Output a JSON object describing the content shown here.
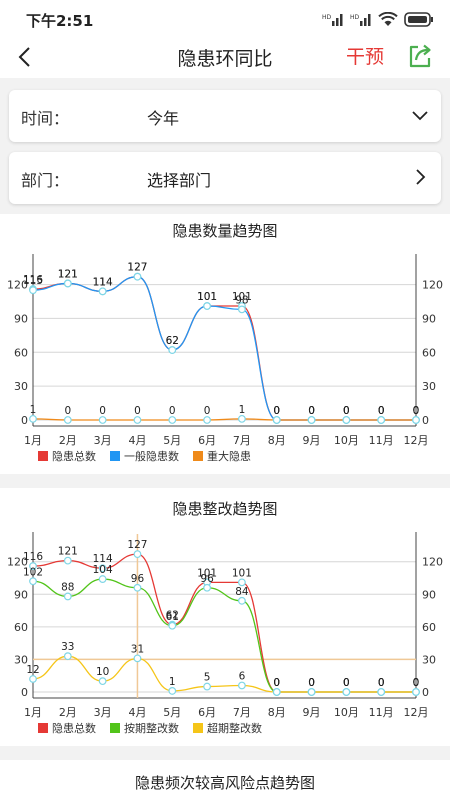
{
  "status_bar": {
    "time": "下午2:51"
  },
  "header": {
    "title": "隐患环同比",
    "action_label": "干预"
  },
  "filters": {
    "time": {
      "label": "时间：",
      "value": "今年"
    },
    "department": {
      "label": "部门：",
      "value": "选择部门"
    }
  },
  "charts": {
    "quantity": {
      "title": "隐患数量趋势图"
    },
    "rectify": {
      "title": "隐患整改趋势图"
    },
    "frequency": {
      "title": "隐患频次较高风险点趋势图"
    }
  },
  "chart_data": [
    {
      "type": "line",
      "title": "隐患数量趋势图",
      "categories": [
        "1月",
        "2月",
        "3月",
        "4月",
        "5月",
        "6月",
        "7月",
        "8月",
        "9月",
        "10月",
        "11月",
        "12月"
      ],
      "series": [
        {
          "name": "隐患总数",
          "color": "#e53935",
          "values": [
            116,
            121,
            114,
            127,
            62,
            101,
            101,
            0,
            0,
            0,
            0,
            0
          ]
        },
        {
          "name": "一般隐患数",
          "color": "#2196f3",
          "values": [
            115,
            121,
            114,
            127,
            62,
            101,
            98,
            0,
            0,
            0,
            0,
            0
          ]
        },
        {
          "name": "重大隐患",
          "color": "#ef8a1a",
          "values": [
            1,
            0,
            0,
            0,
            0,
            0,
            1,
            0,
            0,
            0,
            0,
            0
          ]
        }
      ],
      "y_ticks": [
        0,
        30,
        60,
        90,
        120
      ],
      "ylim": [
        0,
        140
      ],
      "legend_position": "bottom-left"
    },
    {
      "type": "line",
      "title": "隐患整改趋势图",
      "categories": [
        "1月",
        "2月",
        "3月",
        "4月",
        "5月",
        "6月",
        "7月",
        "8月",
        "9月",
        "10月",
        "11月",
        "12月"
      ],
      "series": [
        {
          "name": "隐患总数",
          "color": "#e53935",
          "values": [
            116,
            121,
            114,
            127,
            62,
            101,
            101,
            0,
            0,
            0,
            0,
            0
          ]
        },
        {
          "name": "按期整改数",
          "color": "#52c41a",
          "values": [
            102,
            88,
            104,
            96,
            61,
            96,
            84,
            0,
            0,
            0,
            0,
            0
          ]
        },
        {
          "name": "超期整改数",
          "color": "#f5c518",
          "values": [
            12,
            33,
            10,
            31,
            1,
            5,
            6,
            0,
            0,
            0,
            0,
            0
          ]
        }
      ],
      "y_ticks": [
        0,
        30,
        60,
        90,
        120
      ],
      "ylim": [
        0,
        140
      ],
      "reference_line": 30,
      "highlight_category": "4月",
      "legend_position": "bottom-left"
    }
  ]
}
